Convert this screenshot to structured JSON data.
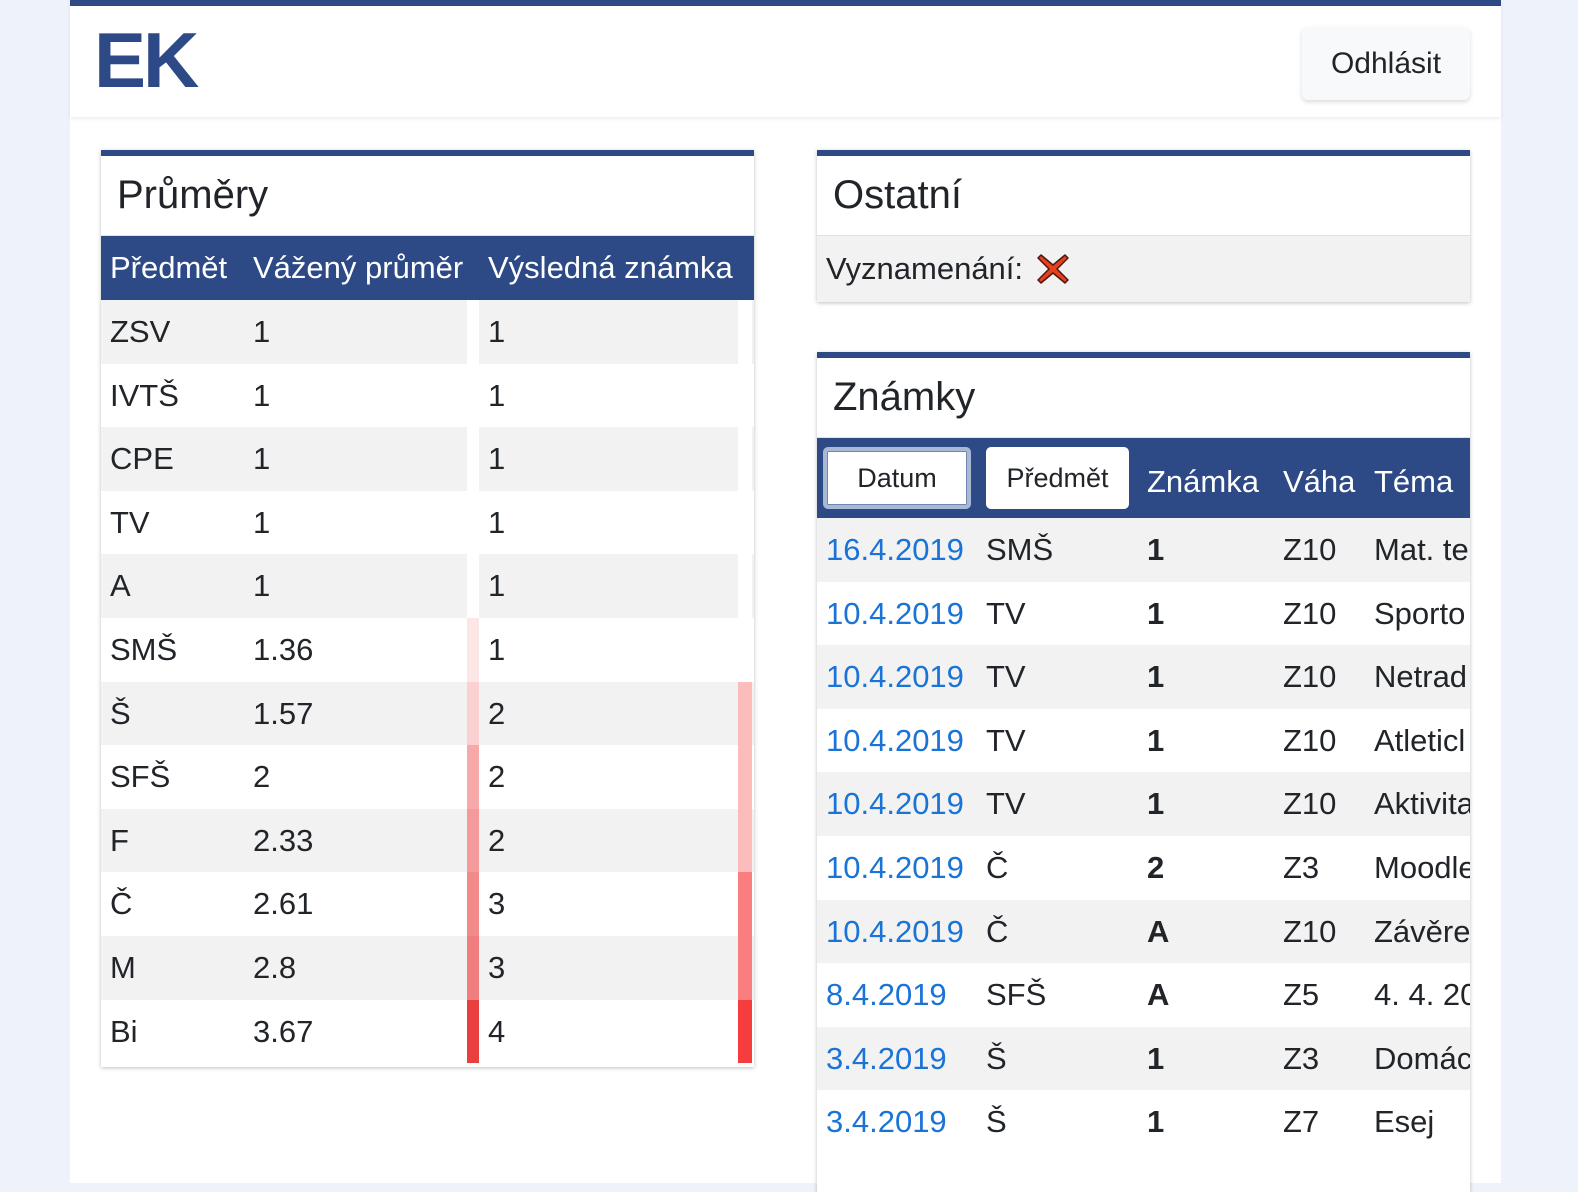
{
  "header": {
    "logo": "EK",
    "logout_label": "Odhlásit"
  },
  "averages": {
    "title": "Průměry",
    "columns": [
      "Předmět",
      "Vážený průměr",
      "Výsledná známka"
    ],
    "rows": [
      {
        "subject": "ZSV",
        "avg": "1",
        "grade": "1",
        "avg_color": "",
        "grade_color": ""
      },
      {
        "subject": "IVTŠ",
        "avg": "1",
        "grade": "1",
        "avg_color": "",
        "grade_color": ""
      },
      {
        "subject": "CPE",
        "avg": "1",
        "grade": "1",
        "avg_color": "",
        "grade_color": ""
      },
      {
        "subject": "TV",
        "avg": "1",
        "grade": "1",
        "avg_color": "",
        "grade_color": ""
      },
      {
        "subject": "A",
        "avg": "1",
        "grade": "1",
        "avg_color": "",
        "grade_color": ""
      },
      {
        "subject": "SMŠ",
        "avg": "1.36",
        "grade": "1",
        "avg_color": "#fde6e6",
        "grade_color": ""
      },
      {
        "subject": "Š",
        "avg": "1.57",
        "grade": "2",
        "avg_color": "#fbd0d0",
        "grade_color": "#fdbcbc"
      },
      {
        "subject": "SFŠ",
        "avg": "2",
        "grade": "2",
        "avg_color": "#f7a8a8",
        "grade_color": "#fdbcbc"
      },
      {
        "subject": "F",
        "avg": "2.33",
        "grade": "2",
        "avg_color": "#f59a9a",
        "grade_color": "#fdbcbc"
      },
      {
        "subject": "Č",
        "avg": "2.61",
        "grade": "3",
        "avg_color": "#f38a8a",
        "grade_color": "#fa7e7e"
      },
      {
        "subject": "M",
        "avg": "2.8",
        "grade": "3",
        "avg_color": "#f17e7e",
        "grade_color": "#fa7e7e"
      },
      {
        "subject": "Bi",
        "avg": "3.67",
        "grade": "4",
        "avg_color": "#ea3f3f",
        "grade_color": "#f63c3c"
      }
    ]
  },
  "other": {
    "title": "Ostatní",
    "distinction_label": "Vyznamenání:",
    "distinction_icon": "red-x-icon"
  },
  "grades": {
    "title": "Známky",
    "sort_buttons": [
      "Datum",
      "Předmět"
    ],
    "columns": [
      "Známka",
      "Váha",
      "Téma"
    ],
    "rows": [
      {
        "date": "16.4.2019",
        "subject": "SMŠ",
        "grade": "1",
        "weight": "Z10",
        "topic": "Mat. te"
      },
      {
        "date": "10.4.2019",
        "subject": "TV",
        "grade": "1",
        "weight": "Z10",
        "topic": "Sporto"
      },
      {
        "date": "10.4.2019",
        "subject": "TV",
        "grade": "1",
        "weight": "Z10",
        "topic": "Netrad"
      },
      {
        "date": "10.4.2019",
        "subject": "TV",
        "grade": "1",
        "weight": "Z10",
        "topic": "Atleticl"
      },
      {
        "date": "10.4.2019",
        "subject": "TV",
        "grade": "1",
        "weight": "Z10",
        "topic": "Aktivita"
      },
      {
        "date": "10.4.2019",
        "subject": "Č",
        "grade": "2",
        "weight": "Z3",
        "topic": "Moodle"
      },
      {
        "date": "10.4.2019",
        "subject": "Č",
        "grade": "A",
        "weight": "Z10",
        "topic": "Závěre"
      },
      {
        "date": "8.4.2019",
        "subject": "SFŠ",
        "grade": "A",
        "weight": "Z5",
        "topic": "4. 4. 20"
      },
      {
        "date": "3.4.2019",
        "subject": "Š",
        "grade": "1",
        "weight": "Z3",
        "topic": "Domác"
      },
      {
        "date": "3.4.2019",
        "subject": "Š",
        "grade": "1",
        "weight": "Z7",
        "topic": "Esej"
      }
    ]
  }
}
